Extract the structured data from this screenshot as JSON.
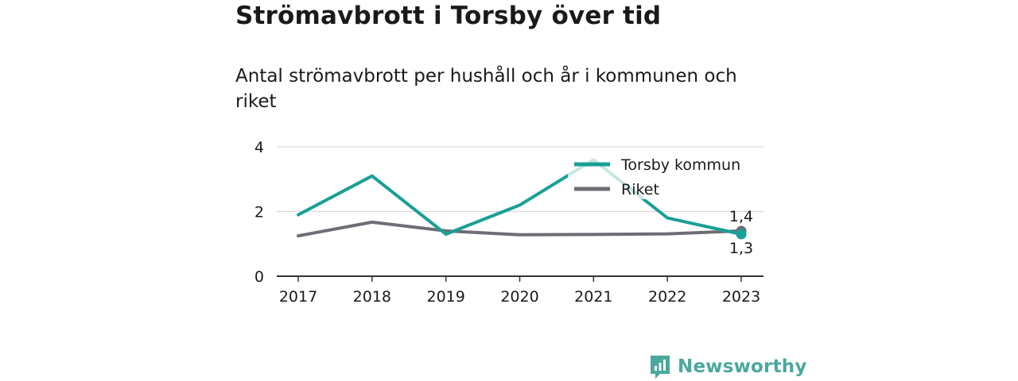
{
  "chart_data": {
    "type": "line",
    "title": "Strömavbrott i Torsby över tid",
    "subtitle": "Antal strömavbrott per hushåll och år i kommunen och riket",
    "x": [
      "2017",
      "2018",
      "2019",
      "2020",
      "2021",
      "2022",
      "2023"
    ],
    "series": [
      {
        "name": "Torsby kommun",
        "color": "#1a9f96",
        "values": [
          1.9,
          3.1,
          1.3,
          2.2,
          3.6,
          1.8,
          1.3
        ],
        "end_label": "1,3"
      },
      {
        "name": "Riket",
        "color": "#6e6d75",
        "values": [
          1.25,
          1.67,
          1.4,
          1.28,
          1.29,
          1.31,
          1.4
        ],
        "end_label": "1,4"
      }
    ],
    "y_ticks": [
      "0",
      "2",
      "4"
    ],
    "ylim": [
      0,
      4
    ],
    "grid": true,
    "legend": "top-right"
  },
  "brand": {
    "name": "Newsworthy",
    "color": "#4aa89d"
  }
}
